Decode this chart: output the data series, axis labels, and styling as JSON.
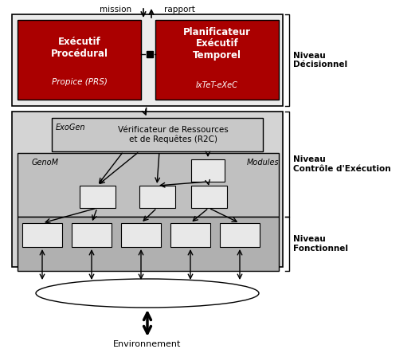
{
  "bg_color": "#ffffff",
  "dark_red": "#AA0000",
  "light_gray_outer": "#E8E8E8",
  "gray_r2c": "#D0D0D0",
  "gray_control": "#C8C8C8",
  "gray_functional": "#B8B8B8",
  "box_white": "#F0F0F0",
  "niveau_decisionnel": "Niveau\nDécisionnel",
  "niveau_controle": "Niveau\nContrôle d'Exécution",
  "niveau_fonctionnel": "Niveau\nFonctionnel",
  "label_mission": "mission",
  "label_rapport": "rapport",
  "label_environnement": "Environnement",
  "label_exoGen": "ExoGen",
  "label_genomM": "GenoM",
  "label_modules": "Modules",
  "box1_text": "Exécutif\nProcédural",
  "box1_sub": "Propice (PRS)",
  "box2_text": "Planificateur\nExécutif\nTemporel",
  "box2_sub": "IxTeT-eXeC",
  "r2c_text": "Vérificateur de Ressources\net de Requêtes (R2C)"
}
